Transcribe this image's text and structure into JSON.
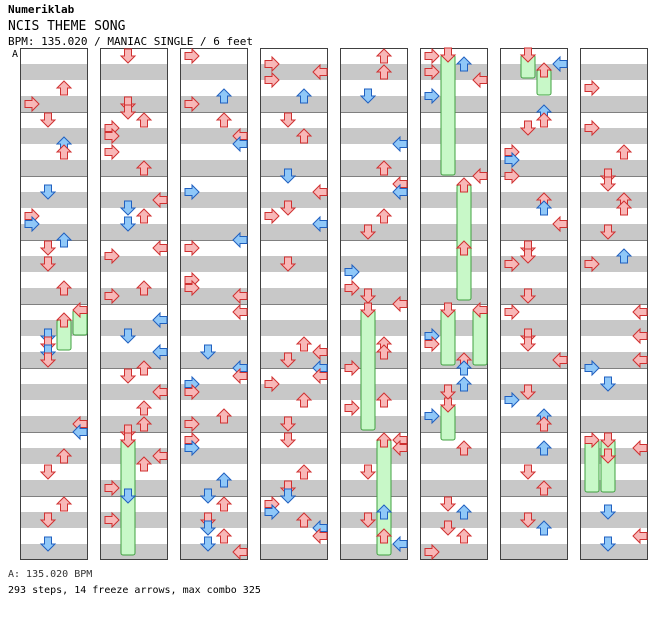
{
  "header": {
    "brand": "Numeriklab",
    "song_title": "NCIS THEME SONG",
    "info_line": "BPM: 135.020 / MANIAC SINGLE / 6 feet"
  },
  "marker": "A",
  "footer": {
    "bpm_line": "A: 135.020 BPM",
    "stats_line": "293 steps, 14 freeze arrows, max combo 325"
  },
  "colors": {
    "stripe": "#c8c8c8",
    "measure_line": "#808080",
    "arrow_red": "#f8b8b8",
    "arrow_red_stroke": "#d03030",
    "arrow_blue": "#90c8f8",
    "arrow_blue_stroke": "#2060c0",
    "freeze_fill": "#c8f8c8",
    "freeze_stroke": "#40a040"
  },
  "chart_data": {
    "type": "step-chart",
    "lanes": [
      "left",
      "down",
      "up",
      "right"
    ],
    "columns": 8,
    "measures_per_column": 8,
    "total_measures": 64
  }
}
